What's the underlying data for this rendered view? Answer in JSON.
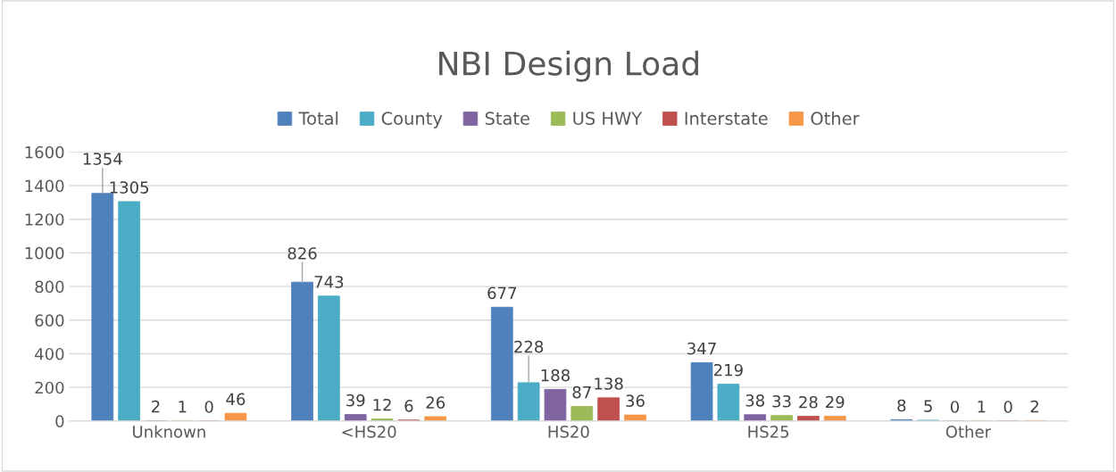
{
  "chart_data": {
    "type": "bar",
    "title": "NBI Design Load",
    "categories": [
      "Unknown",
      "<HS20",
      "HS20",
      "HS25",
      "Other"
    ],
    "series": [
      {
        "name": "Total",
        "color": "#4f81bd",
        "values": [
          1354,
          826,
          677,
          347,
          8
        ]
      },
      {
        "name": "County",
        "color": "#4bacc6",
        "values": [
          1305,
          743,
          228,
          219,
          5
        ]
      },
      {
        "name": "State",
        "color": "#8064a2",
        "values": [
          2,
          39,
          188,
          38,
          0
        ]
      },
      {
        "name": "US HWY",
        "color": "#9bbb59",
        "values": [
          1,
          12,
          87,
          33,
          1
        ]
      },
      {
        "name": "Interstate",
        "color": "#c0504d",
        "values": [
          0,
          6,
          138,
          28,
          0
        ]
      },
      {
        "name": "Other",
        "color": "#f79646",
        "values": [
          46,
          26,
          36,
          29,
          2
        ]
      }
    ],
    "ylim": [
      0,
      1600
    ],
    "yticks": [
      0,
      200,
      400,
      600,
      800,
      1000,
      1200,
      1400,
      1600
    ],
    "grid": "y",
    "legend": "top",
    "data_labels": true
  }
}
